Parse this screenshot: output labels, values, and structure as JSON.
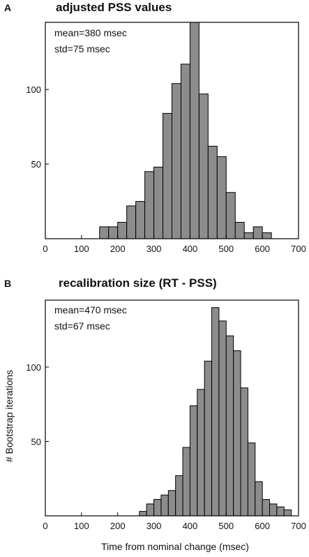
{
  "chart_data": [
    {
      "type": "bar",
      "panel_label": "A",
      "title": "adjusted PSS values",
      "xlabel": "",
      "ylabel": "",
      "xlim": [
        0,
        700
      ],
      "ylim": [
        0,
        145
      ],
      "bin_width": 25,
      "x_ticks": [
        0,
        100,
        200,
        300,
        400,
        500,
        600,
        700
      ],
      "y_ticks": [
        50,
        100
      ],
      "annotations": [
        "mean=380 msec",
        "std=75 msec"
      ],
      "bar_color": "#8c8c8c",
      "bins": [
        {
          "x0": 150,
          "count": 8
        },
        {
          "x0": 175,
          "count": 8
        },
        {
          "x0": 200,
          "count": 11
        },
        {
          "x0": 225,
          "count": 22
        },
        {
          "x0": 250,
          "count": 25
        },
        {
          "x0": 275,
          "count": 45
        },
        {
          "x0": 300,
          "count": 48
        },
        {
          "x0": 325,
          "count": 84
        },
        {
          "x0": 350,
          "count": 104
        },
        {
          "x0": 375,
          "count": 117
        },
        {
          "x0": 400,
          "count": 145
        },
        {
          "x0": 425,
          "count": 97
        },
        {
          "x0": 450,
          "count": 62
        },
        {
          "x0": 475,
          "count": 55
        },
        {
          "x0": 500,
          "count": 31
        },
        {
          "x0": 525,
          "count": 11
        },
        {
          "x0": 550,
          "count": 4
        },
        {
          "x0": 575,
          "count": 8
        },
        {
          "x0": 600,
          "count": 4
        }
      ]
    },
    {
      "type": "bar",
      "panel_label": "B",
      "title": "recalibration size (RT - PSS)",
      "xlabel": "Time from nominal change (msec)",
      "ylabel": "# Bootstrap iterations",
      "xlim": [
        0,
        700
      ],
      "ylim": [
        0,
        145
      ],
      "bin_width": 20,
      "x_ticks": [
        0,
        100,
        200,
        300,
        400,
        500,
        600,
        700
      ],
      "y_ticks": [
        50,
        100
      ],
      "annotations": [
        "mean=470 msec",
        "std=67 msec"
      ],
      "bar_color": "#8c8c8c",
      "bins": [
        {
          "x0": 260,
          "count": 3
        },
        {
          "x0": 280,
          "count": 8
        },
        {
          "x0": 300,
          "count": 11
        },
        {
          "x0": 320,
          "count": 14
        },
        {
          "x0": 340,
          "count": 17
        },
        {
          "x0": 360,
          "count": 27
        },
        {
          "x0": 380,
          "count": 46
        },
        {
          "x0": 400,
          "count": 74
        },
        {
          "x0": 420,
          "count": 85
        },
        {
          "x0": 440,
          "count": 104
        },
        {
          "x0": 460,
          "count": 140
        },
        {
          "x0": 480,
          "count": 131
        },
        {
          "x0": 500,
          "count": 121
        },
        {
          "x0": 520,
          "count": 111
        },
        {
          "x0": 540,
          "count": 86
        },
        {
          "x0": 560,
          "count": 49
        },
        {
          "x0": 580,
          "count": 23
        },
        {
          "x0": 600,
          "count": 11
        },
        {
          "x0": 620,
          "count": 8
        },
        {
          "x0": 640,
          "count": 6
        },
        {
          "x0": 660,
          "count": 4
        }
      ]
    }
  ]
}
